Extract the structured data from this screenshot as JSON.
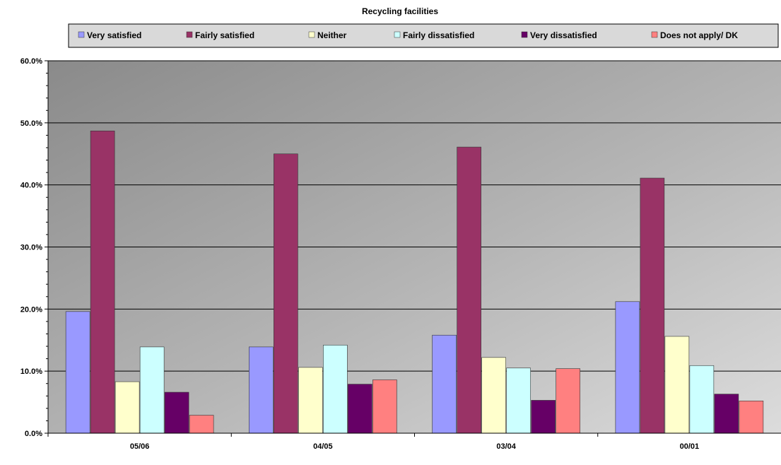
{
  "chart_data": {
    "type": "bar",
    "title": "Recycling facilities",
    "xlabel": "",
    "ylabel": "",
    "categories": [
      "05/06",
      "04/05",
      "03/04",
      "00/01"
    ],
    "ylim": [
      0,
      60
    ],
    "yticks": [
      0,
      10,
      20,
      30,
      40,
      50,
      60
    ],
    "ytick_labels": [
      "0.0%",
      "10.0%",
      "20.0%",
      "30.0%",
      "40.0%",
      "50.0%",
      "60.0%"
    ],
    "grid": true,
    "legend_position": "top",
    "series": [
      {
        "name": "Very satisfied",
        "color": "#9999ff",
        "values": [
          19.6,
          13.9,
          15.8,
          21.2
        ]
      },
      {
        "name": "Fairly satisfied",
        "color": "#993366",
        "values": [
          48.7,
          45.0,
          46.1,
          41.1
        ]
      },
      {
        "name": "Neither",
        "color": "#ffffcc",
        "values": [
          8.3,
          10.6,
          12.2,
          15.6
        ]
      },
      {
        "name": "Fairly dissatisfied",
        "color": "#ccffff",
        "values": [
          13.9,
          14.2,
          10.5,
          10.9
        ]
      },
      {
        "name": "Very dissatisfied",
        "color": "#660066",
        "values": [
          6.6,
          7.9,
          5.3,
          6.3
        ]
      },
      {
        "name": "Does not apply/ DK",
        "color": "#ff8080",
        "values": [
          2.9,
          8.6,
          10.4,
          5.2
        ]
      }
    ]
  }
}
